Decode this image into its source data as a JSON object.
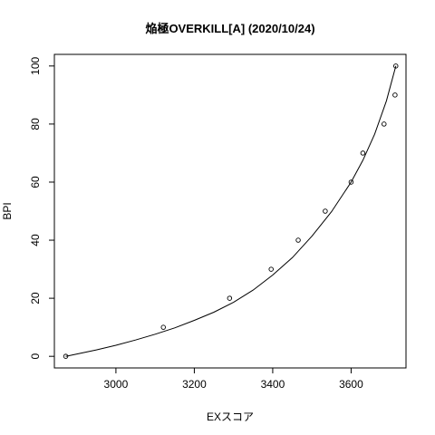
{
  "chart_data": {
    "type": "scatter",
    "title": "焔極OVERKILL[A] (2020/10/24)",
    "xlabel": "EXスコア",
    "ylabel": "BPI",
    "xlim": [
      2843,
      3740
    ],
    "ylim": [
      -4,
      104
    ],
    "xticks": [
      3000,
      3200,
      3400,
      3600
    ],
    "yticks": [
      0,
      20,
      40,
      60,
      80,
      100
    ],
    "grid": false,
    "series": [
      {
        "kind": "points",
        "x": [
          2872,
          3121,
          3290,
          3396,
          3465,
          3534,
          3600,
          3630,
          3684,
          3712,
          3714
        ],
        "y": [
          0,
          10,
          20,
          30,
          40,
          50,
          60,
          70,
          80,
          90,
          100
        ]
      },
      {
        "kind": "fitted-curve",
        "x": [
          2872,
          2950,
          3000,
          3050,
          3100,
          3150,
          3200,
          3250,
          3300,
          3350,
          3400,
          3450,
          3500,
          3550,
          3600,
          3630,
          3660,
          3690,
          3714
        ],
        "y": [
          0,
          2.2,
          3.8,
          5.6,
          7.6,
          9.8,
          12.4,
          15.2,
          18.6,
          22.8,
          28,
          34,
          41.4,
          49.8,
          60,
          67.5,
          76.5,
          88,
          100
        ]
      }
    ]
  }
}
